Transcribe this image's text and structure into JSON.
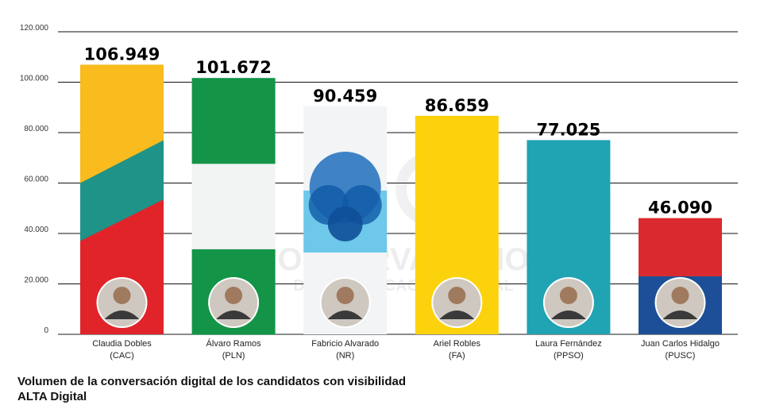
{
  "chart_data": {
    "type": "bar",
    "title": "Volumen de la conversación digital de los candidatos con visibilidad ALTA Digital",
    "ylim": [
      0,
      120000
    ],
    "yticks": [
      0,
      20000,
      40000,
      60000,
      80000,
      100000,
      120000
    ],
    "ytick_labels": [
      "0",
      "20.000",
      "40.000",
      "60.000",
      "80.000",
      "100.000",
      "120.000"
    ],
    "grid": true,
    "categories": [
      {
        "name": "Claudia Dobles",
        "party": "(CAC)"
      },
      {
        "name": "Álvaro Ramos",
        "party": "(PLN)"
      },
      {
        "name": "Fabricio Alvarado",
        "party": "(NR)"
      },
      {
        "name": "Ariel Robles",
        "party": "(FA)"
      },
      {
        "name": "Laura Fernández",
        "party": "(PPSO)"
      },
      {
        "name": "Juan Carlos Hidalgo",
        "party": "(PUSC)"
      }
    ],
    "values": [
      106949,
      101672,
      90459,
      86659,
      77025,
      46090
    ],
    "value_labels": [
      "106.949",
      "101.672",
      "90.459",
      "86.659",
      "77.025",
      "46.090"
    ],
    "bar_colors": [
      [
        "#e0242a",
        "#1f9388",
        "#f9bb1d"
      ],
      [
        "#139447",
        "#f2f3f3",
        "#139447"
      ],
      [
        "#f2f4f6"
      ],
      [
        "#fcd20c"
      ],
      [
        "#20a3b3"
      ],
      [
        "#1c4f97",
        "#da2a2f"
      ]
    ],
    "watermark": "OBSERVATORIO DE COMUNICACIÓN DIGITAL"
  }
}
